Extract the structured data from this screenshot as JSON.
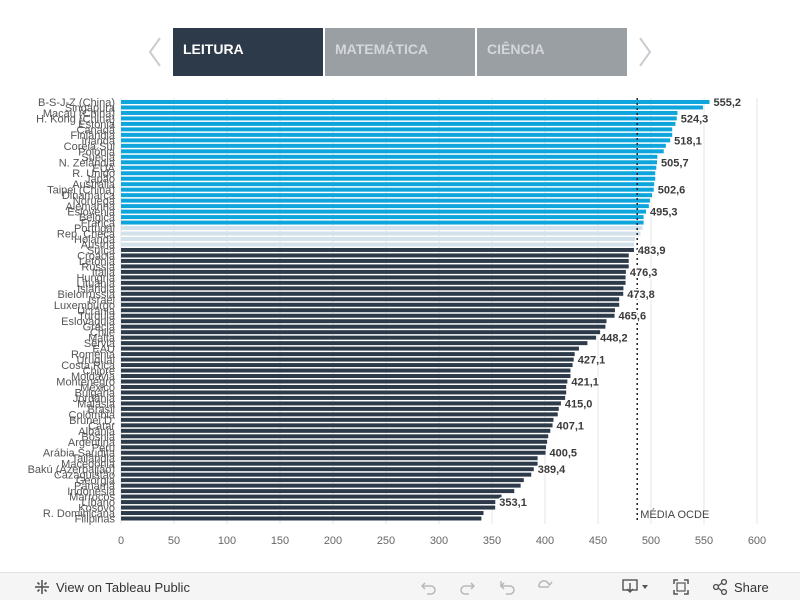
{
  "tabs": [
    {
      "label": "LEITURA",
      "active": true
    },
    {
      "label": "MATEMÁTICA",
      "active": false
    },
    {
      "label": "CIÊNCIA",
      "active": false
    }
  ],
  "footer": {
    "tableau_link": "View on Tableau Public",
    "share_label": "Share"
  },
  "colors": {
    "above_average": "#0ea5dd",
    "near_average": "#d2e1ea",
    "below_average": "#2c3a4a",
    "active_tab": "#2c3a4a",
    "inactive_tab": "#9a9fa4"
  },
  "chart_data": {
    "type": "bar",
    "orientation": "horizontal",
    "title": "",
    "xlabel": "",
    "ylabel": "",
    "xlim": [
      0,
      600
    ],
    "xticks": [
      0,
      50,
      100,
      150,
      200,
      250,
      300,
      350,
      400,
      450,
      500,
      550,
      600
    ],
    "reference_line": {
      "label": "MÉDIA OCDE",
      "value": 487
    },
    "categories": [
      "B-S-J-Z (China)",
      "Singapura",
      "Macau (China)",
      "H. Kong (China)",
      "Estónia",
      "Canadá",
      "Finlândia",
      "Irlanda",
      "Coreia Sul",
      "Polónia",
      "Suécia",
      "N. Zelândia",
      "EUA",
      "R. Unido",
      "Japão",
      "Austrália",
      "Taipei (China)",
      "Dinamarca",
      "Noruega",
      "Alemanha",
      "Eslovénia",
      "Bélgica",
      "França",
      "Portugal",
      "Rep. Checa",
      "Holanda",
      "Áustria",
      "Suíça",
      "Croácia",
      "Letónia",
      "Rússia",
      "Itália",
      "Hungria",
      "Lituânia",
      "Islândia",
      "Bielorrússia",
      "Israel",
      "Luxemburgo",
      "Ucrânia",
      "Turquia",
      "Eslováquia",
      "Grécia",
      "Chile",
      "Malta",
      "Sérvia",
      "EAU",
      "Roménia",
      "Uruguai",
      "Costa Rica",
      "Chipre",
      "Moldávia",
      "Montenegro",
      "México",
      "Bulgária",
      "Jordânia",
      "Malásia",
      "Brasil",
      "Colômbia",
      "Brunei D.",
      "Catar",
      "Albânia",
      "Bósnia",
      "Argentina",
      "Peru",
      "Arábia Saudita",
      "Tailândia",
      "Macedónia",
      "Bakú (Azerbaijão)",
      "Cazaquistão",
      "Geórgia",
      "Panamá",
      "Indonésia",
      "Marrocos",
      "Líbano",
      "Kosovo",
      "R. Dominicana",
      "Filipinas"
    ],
    "values": [
      555.2,
      549,
      525,
      524.3,
      523,
      520,
      520,
      518.1,
      514,
      512,
      506,
      505.7,
      505,
      504,
      504,
      503,
      502.6,
      501,
      499,
      498,
      495.3,
      493,
      493,
      492,
      490,
      485,
      484,
      483.9,
      479,
      479,
      479,
      476.3,
      476,
      476,
      474,
      473.8,
      470,
      470,
      466,
      465.6,
      458,
      457,
      452,
      448.2,
      440,
      432,
      428,
      427.1,
      426,
      424,
      424,
      421.1,
      420,
      420,
      419,
      415.0,
      413,
      412,
      408,
      407.1,
      405,
      403,
      402,
      401,
      400.5,
      393,
      393,
      389.4,
      387,
      380,
      377,
      371,
      359,
      353.1,
      353,
      342,
      340
    ],
    "category": [
      "above",
      "above",
      "above",
      "above",
      "above",
      "above",
      "above",
      "above",
      "above",
      "above",
      "above",
      "above",
      "above",
      "above",
      "above",
      "above",
      "above",
      "above",
      "above",
      "above",
      "above",
      "above",
      "above",
      "near",
      "near",
      "near",
      "near",
      "below",
      "below",
      "below",
      "below",
      "below",
      "below",
      "below",
      "below",
      "below",
      "below",
      "below",
      "below",
      "below",
      "below",
      "below",
      "below",
      "below",
      "below",
      "below",
      "below",
      "below",
      "below",
      "below",
      "below",
      "below",
      "below",
      "below",
      "below",
      "below",
      "below",
      "below",
      "below",
      "below",
      "below",
      "below",
      "below",
      "below",
      "below",
      "below",
      "below",
      "below",
      "below",
      "below",
      "below",
      "below",
      "below",
      "below",
      "below",
      "below",
      "below"
    ],
    "data_labels": [
      {
        "index": 0,
        "text": "555,2"
      },
      {
        "index": 3,
        "text": "524,3"
      },
      {
        "index": 7,
        "text": "518,1"
      },
      {
        "index": 11,
        "text": "505,7"
      },
      {
        "index": 16,
        "text": "502,6"
      },
      {
        "index": 20,
        "text": "495,3"
      },
      {
        "index": 27,
        "text": "483,9"
      },
      {
        "index": 31,
        "text": "476,3"
      },
      {
        "index": 35,
        "text": "473,8"
      },
      {
        "index": 39,
        "text": "465,6"
      },
      {
        "index": 43,
        "text": "448,2"
      },
      {
        "index": 47,
        "text": "427,1"
      },
      {
        "index": 51,
        "text": "421,1"
      },
      {
        "index": 55,
        "text": "415,0"
      },
      {
        "index": 59,
        "text": "407,1"
      },
      {
        "index": 64,
        "text": "400,5"
      },
      {
        "index": 67,
        "text": "389,4"
      },
      {
        "index": 73,
        "text": "353,1"
      }
    ]
  }
}
